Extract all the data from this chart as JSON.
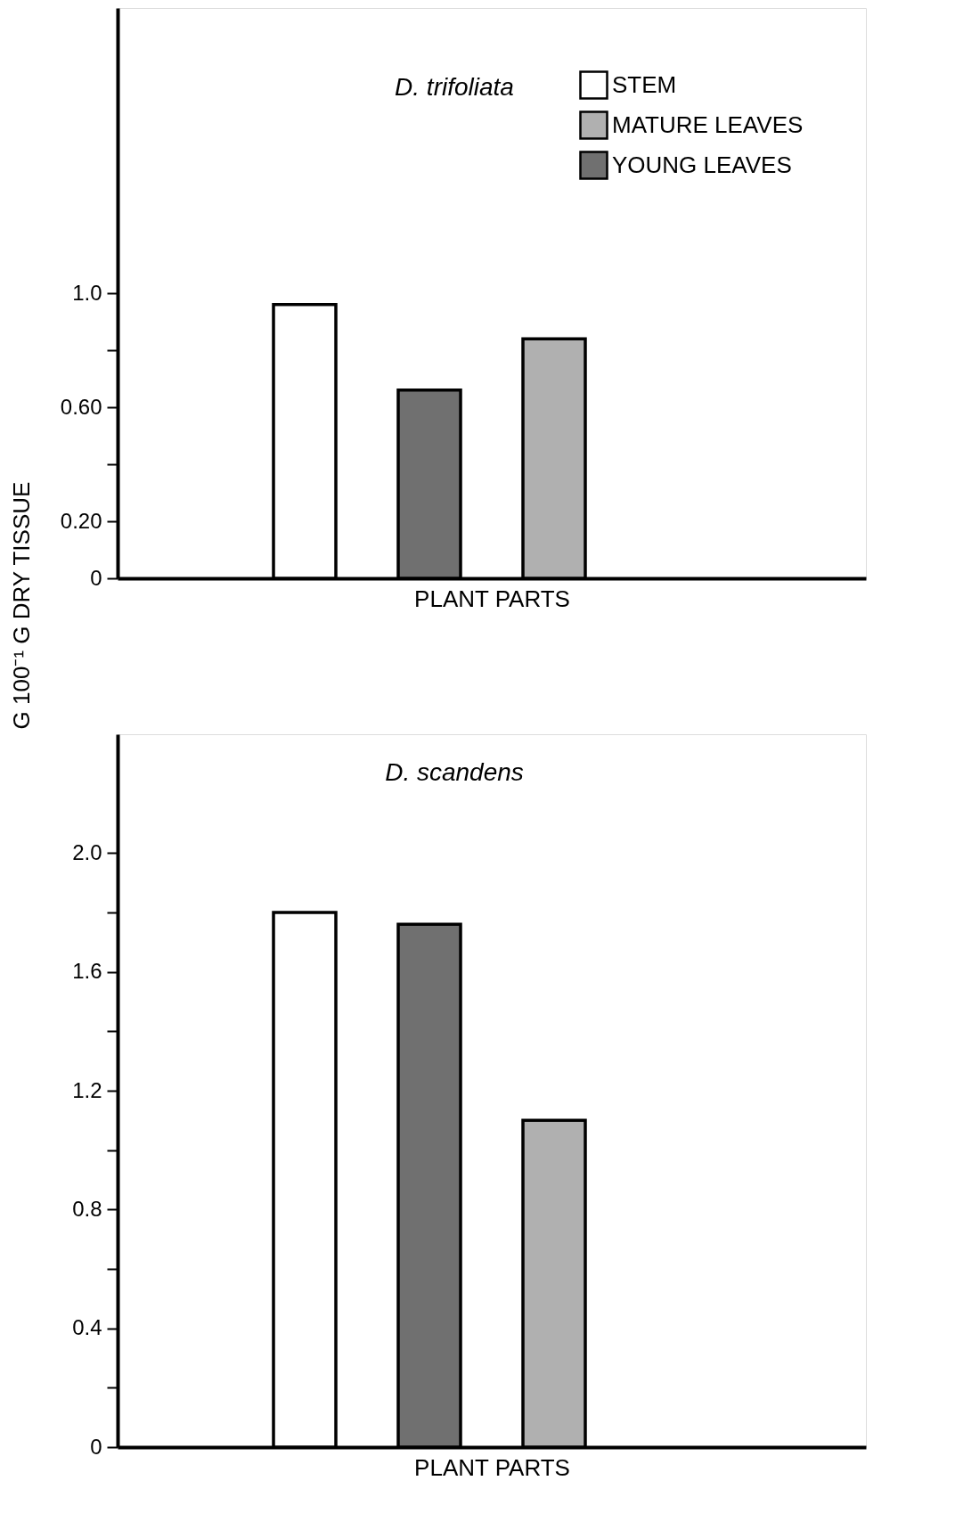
{
  "chart_data": [
    {
      "type": "bar",
      "title": "D. trifoliata",
      "xlabel": "PLANT PARTS",
      "ylabel": "G 100⁻¹ G DRY TISSUE",
      "categories": [
        null,
        null,
        null,
        null,
        null,
        null
      ],
      "series": [
        {
          "name": "STEM",
          "color": "#ffffff",
          "values": [
            null,
            0.96,
            null,
            null,
            null,
            null
          ]
        },
        {
          "name": "MATURE LEAVES",
          "color": "#b0b0b0",
          "values": [
            null,
            null,
            null,
            0.84,
            null,
            null
          ]
        },
        {
          "name": "YOUNG LEAVES",
          "color": "#707070",
          "values": [
            null,
            null,
            0.66,
            null,
            null,
            null
          ]
        }
      ],
      "ylim": [
        0,
        2.0
      ],
      "yticks": [
        0,
        {
          "value": 0.2,
          "label": "0.20"
        },
        {
          "value": 0.4,
          "label": null
        },
        {
          "value": 0.6,
          "label": "0.60"
        },
        {
          "value": 0.8,
          "label": null
        },
        {
          "value": 1.0,
          "label": "1.0"
        }
      ],
      "legend": "top right",
      "grid": false
    },
    {
      "type": "bar",
      "title": "D. scandens",
      "xlabel": "PLANT PARTS",
      "categories": [
        null,
        null,
        null,
        null,
        null,
        null
      ],
      "series": [
        {
          "color": "#ffffff",
          "values": [
            null,
            1.8,
            null,
            null,
            null,
            null
          ]
        },
        {
          "color": "#b0b0b0",
          "values": [
            null,
            null,
            null,
            1.1,
            null,
            null
          ]
        },
        {
          "color": "#707070",
          "values": [
            null,
            null,
            1.76,
            null,
            null,
            null
          ]
        }
      ],
      "ylim": [
        0,
        2.4
      ],
      "yticks": [
        0,
        {
          "value": 0.2,
          "label": null
        },
        0.4,
        {
          "value": 0.6,
          "label": null
        },
        0.8,
        {
          "value": 1.0,
          "label": null
        },
        1.2,
        {
          "value": 1.4,
          "label": null
        },
        1.6,
        {
          "value": 1.8,
          "label": null
        },
        {
          "value": 2.0,
          "label": "2.0"
        }
      ],
      "grid": false
    }
  ]
}
